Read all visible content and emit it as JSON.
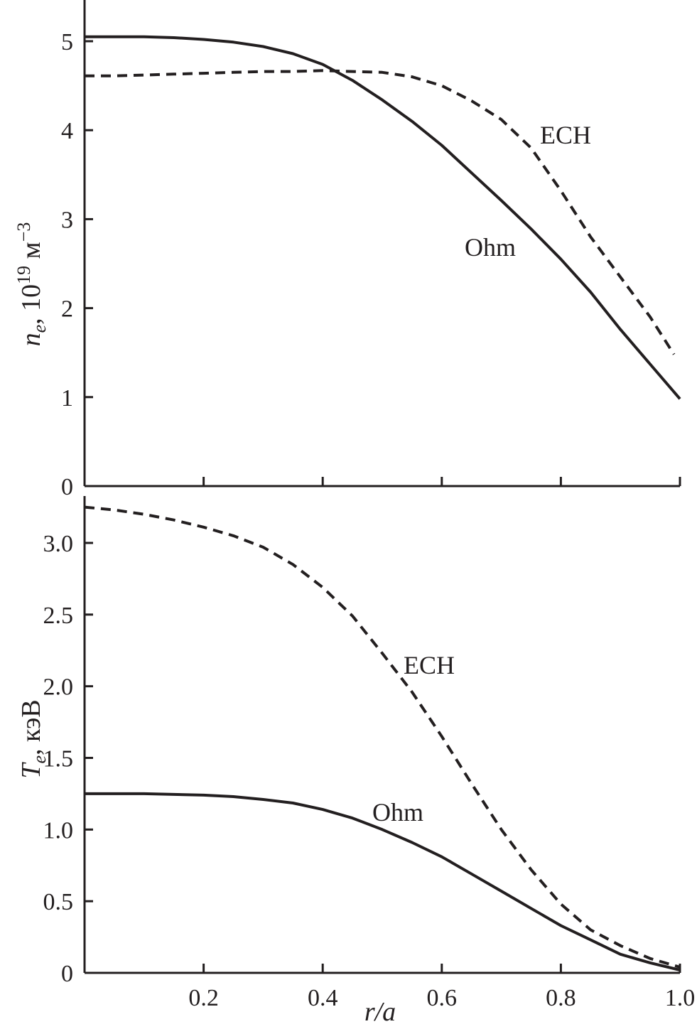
{
  "chart_data": [
    {
      "type": "line",
      "ylabel": {
        "main": "n",
        "sub": "e",
        "mid": ", 10",
        "sup1": "19",
        "unit": " м",
        "sup2": "−3"
      },
      "xlim": [
        0,
        1.0
      ],
      "ylim": [
        0,
        5.5
      ],
      "yticks": [
        "0",
        "1",
        "2",
        "3",
        "4",
        "5"
      ],
      "ytick_values": [
        0,
        1,
        2,
        3,
        4,
        5
      ],
      "xtick_values": [
        0.2,
        0.4,
        0.6,
        0.8,
        1.0
      ],
      "grid": false,
      "series": [
        {
          "name": "Ohm",
          "style": "solid",
          "x": [
            0.0,
            0.05,
            0.1,
            0.15,
            0.2,
            0.25,
            0.3,
            0.35,
            0.4,
            0.45,
            0.5,
            0.55,
            0.6,
            0.65,
            0.7,
            0.75,
            0.8,
            0.85,
            0.9,
            0.95,
            1.0
          ],
          "y": [
            5.05,
            5.05,
            5.05,
            5.04,
            5.02,
            4.99,
            4.94,
            4.86,
            4.74,
            4.56,
            4.34,
            4.1,
            3.83,
            3.52,
            3.21,
            2.89,
            2.55,
            2.18,
            1.76,
            1.37,
            0.98
          ]
        },
        {
          "name": "ECH",
          "style": "dashed",
          "x": [
            0.0,
            0.05,
            0.1,
            0.15,
            0.2,
            0.25,
            0.3,
            0.35,
            0.4,
            0.45,
            0.5,
            0.55,
            0.6,
            0.65,
            0.7,
            0.75,
            0.8,
            0.85,
            0.9,
            0.95,
            0.99
          ],
          "y": [
            4.61,
            4.61,
            4.62,
            4.63,
            4.64,
            4.65,
            4.66,
            4.66,
            4.67,
            4.66,
            4.65,
            4.6,
            4.5,
            4.33,
            4.12,
            3.8,
            3.32,
            2.8,
            2.35,
            1.9,
            1.48
          ]
        }
      ],
      "annotations": [
        "ECH",
        "Ohm"
      ]
    },
    {
      "type": "line",
      "ylabel": {
        "main": "T",
        "sub": "e",
        "unit": ", кэВ"
      },
      "xlabel": "r/a",
      "xlim": [
        0,
        1.0
      ],
      "ylim": [
        0,
        3.3
      ],
      "yticks": [
        "0",
        "0.5",
        "1.0",
        "1.5",
        "2.0",
        "2.5",
        "3.0"
      ],
      "ytick_values": [
        0,
        0.5,
        1.0,
        1.5,
        2.0,
        2.5,
        3.0
      ],
      "xticks": [
        "0.2",
        "0.4",
        "0.6",
        "0.8",
        "1.0"
      ],
      "xtick_values": [
        0.2,
        0.4,
        0.6,
        0.8,
        1.0
      ],
      "grid": false,
      "series": [
        {
          "name": "Ohm",
          "style": "solid",
          "x": [
            0.0,
            0.05,
            0.1,
            0.15,
            0.2,
            0.25,
            0.3,
            0.35,
            0.4,
            0.45,
            0.5,
            0.55,
            0.6,
            0.65,
            0.7,
            0.75,
            0.8,
            0.85,
            0.9,
            0.95,
            1.0
          ],
          "y": [
            1.25,
            1.25,
            1.25,
            1.245,
            1.24,
            1.23,
            1.21,
            1.185,
            1.14,
            1.08,
            1.0,
            0.91,
            0.81,
            0.69,
            0.57,
            0.45,
            0.33,
            0.23,
            0.13,
            0.07,
            0.02
          ]
        },
        {
          "name": "ECH",
          "style": "dashed",
          "x": [
            0.0,
            0.05,
            0.1,
            0.15,
            0.2,
            0.25,
            0.3,
            0.35,
            0.4,
            0.45,
            0.5,
            0.55,
            0.6,
            0.65,
            0.7,
            0.75,
            0.8,
            0.85,
            0.9,
            0.95,
            1.0
          ],
          "y": [
            3.25,
            3.23,
            3.2,
            3.16,
            3.11,
            3.05,
            2.97,
            2.85,
            2.69,
            2.49,
            2.23,
            1.96,
            1.65,
            1.32,
            1.0,
            0.72,
            0.48,
            0.3,
            0.19,
            0.1,
            0.04
          ]
        }
      ],
      "annotations": [
        "ECH",
        "Ohm"
      ]
    }
  ]
}
